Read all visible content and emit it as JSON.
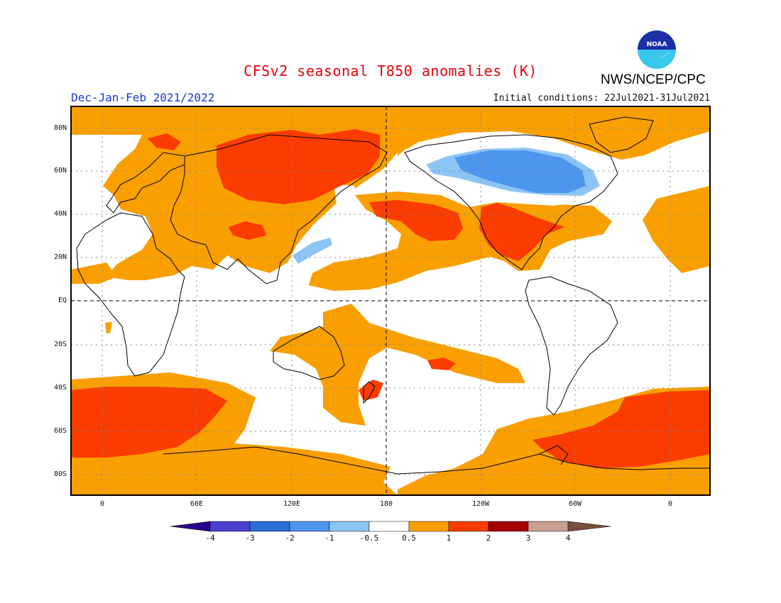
{
  "header": {
    "title": "CFSv2 seasonal T850 anomalies (K)",
    "period": "Dec-Jan-Feb 2021/2022",
    "initial_conditions": "Initial conditions: 22Jul2021-31Jul2021",
    "agency": "NWS/NCEP/CPC",
    "logo_text": "NOAA"
  },
  "map": {
    "lat_ticks": [
      "80N",
      "60N",
      "40N",
      "20N",
      "EQ",
      "20S",
      "40S",
      "60S",
      "80S"
    ],
    "lon_ticks": [
      "0",
      "60E",
      "120E",
      "180",
      "120W",
      "60W",
      "0"
    ]
  },
  "legend": {
    "levels": [
      "-4",
      "-3",
      "-2",
      "-1",
      "-0.5",
      "0.5",
      "1",
      "2",
      "3",
      "4"
    ],
    "colors": [
      "#2a008a",
      "#4a3fcf",
      "#2c6ed6",
      "#4d96ee",
      "#8cc4f6",
      "#ffffff",
      "#f99f00",
      "#fa3c00",
      "#a30000",
      "#c9a090",
      "#7a4e3c"
    ]
  },
  "colors": {
    "title": "#e8000b",
    "period": "#1a3bd8",
    "anomaly_0_5_to_1": "#f99f00",
    "anomaly_1_to_2": "#fa3c00",
    "anomaly_neg_1_to_neg_0_5": "#8cc4f6",
    "anomaly_neg_2_to_neg_1": "#4d96ee"
  }
}
